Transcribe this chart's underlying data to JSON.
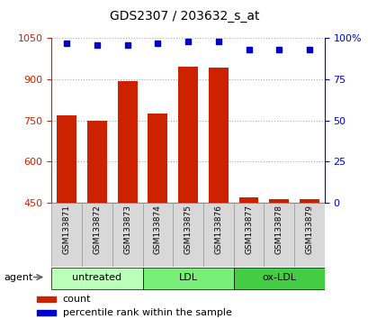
{
  "title": "GDS2307 / 203632_s_at",
  "samples": [
    "GSM133871",
    "GSM133872",
    "GSM133873",
    "GSM133874",
    "GSM133875",
    "GSM133876",
    "GSM133877",
    "GSM133878",
    "GSM133879"
  ],
  "counts": [
    770,
    750,
    893,
    775,
    945,
    942,
    470,
    463,
    462
  ],
  "percentiles": [
    97,
    96,
    96,
    97,
    98,
    98,
    93,
    93,
    93
  ],
  "groups": [
    {
      "label": "untreated",
      "samples": [
        0,
        1,
        2
      ],
      "color": "#bbffbb"
    },
    {
      "label": "LDL",
      "samples": [
        3,
        4,
        5
      ],
      "color": "#77ee77"
    },
    {
      "label": "ox-LDL",
      "samples": [
        6,
        7,
        8
      ],
      "color": "#44cc44"
    }
  ],
  "ylim_left": [
    450,
    1050
  ],
  "ylim_right": [
    0,
    100
  ],
  "yticks_left": [
    450,
    600,
    750,
    900,
    1050
  ],
  "yticks_right": [
    0,
    25,
    50,
    75,
    100
  ],
  "bar_color": "#cc2200",
  "dot_color": "#0000cc",
  "grid_color": "#aaaaaa",
  "bar_width": 0.65,
  "agent_label": "agent",
  "legend_count_label": "count",
  "legend_pct_label": "percentile rank within the sample"
}
